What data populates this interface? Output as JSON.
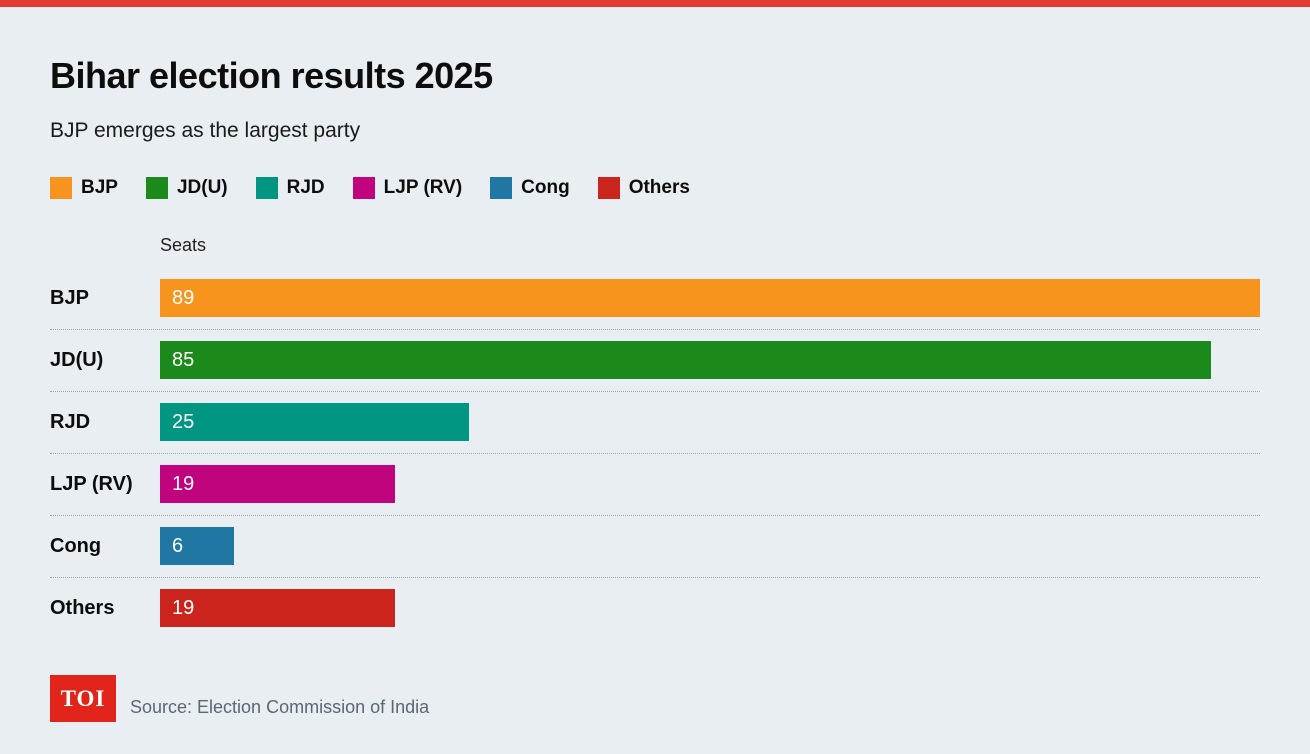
{
  "page": {
    "title": "Bihar election results 2025",
    "subtitle": "BJP emerges as the largest party",
    "axis_label": "Seats",
    "logo_text": "TOI",
    "source": "Source: Election Commission of India"
  },
  "colors": {
    "background": "#e9eef3",
    "top_strip": "#e23b30",
    "logo_bg": "#e1251b",
    "separator": "#9aa3ab",
    "source_text": "#5b6770"
  },
  "chart_data": {
    "type": "bar",
    "orientation": "horizontal",
    "title": "Bihar election results 2025",
    "subtitle": "BJP emerges as the largest party",
    "xlabel": "Seats",
    "ylabel": "",
    "xlim": [
      0,
      89
    ],
    "grid": false,
    "legend_position": "top",
    "categories": [
      "BJP",
      "JD(U)",
      "RJD",
      "LJP (RV)",
      "Cong",
      "Others"
    ],
    "values": [
      89,
      85,
      25,
      19,
      6,
      19
    ],
    "colors": [
      "#f7941e",
      "#1b8a1b",
      "#009682",
      "#c0047e",
      "#2077a3",
      "#cb241d"
    ],
    "legend": [
      {
        "label": "BJP",
        "color": "#f7941e"
      },
      {
        "label": "JD(U)",
        "color": "#1b8a1b"
      },
      {
        "label": "RJD",
        "color": "#009682"
      },
      {
        "label": "LJP (RV)",
        "color": "#c0047e"
      },
      {
        "label": "Cong",
        "color": "#2077a3"
      },
      {
        "label": "Others",
        "color": "#cb241d"
      }
    ]
  }
}
